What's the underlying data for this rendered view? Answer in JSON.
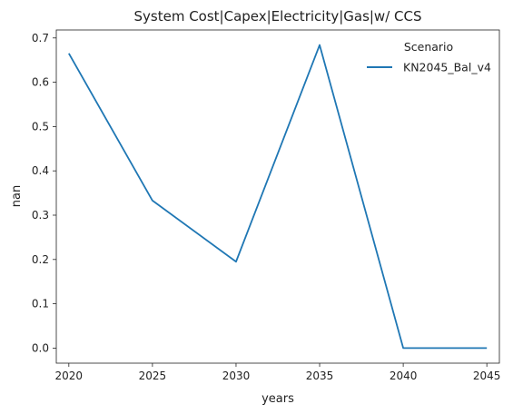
{
  "chart_data": {
    "type": "line",
    "title": "System Cost|Capex|Electricity|Gas|w/ CCS",
    "xlabel": "years",
    "ylabel": "nan",
    "x": [
      2020,
      2025,
      2030,
      2035,
      2040,
      2045
    ],
    "xticks": [
      "2020",
      "2025",
      "2030",
      "2035",
      "2040",
      "2045"
    ],
    "yticks": [
      "0.0",
      "0.1",
      "0.2",
      "0.3",
      "0.4",
      "0.5",
      "0.6",
      "0.7"
    ],
    "xlim": [
      2019.25,
      2045.75
    ],
    "ylim": [
      -0.034,
      0.718
    ],
    "grid": false,
    "legend": {
      "title": "Scenario",
      "placement": "top-right"
    },
    "series": [
      {
        "name": "KN2045_Bal_v4",
        "color": "#1f77b4",
        "values": [
          0.665,
          0.333,
          0.195,
          0.684,
          0.0,
          0.0
        ]
      }
    ]
  }
}
